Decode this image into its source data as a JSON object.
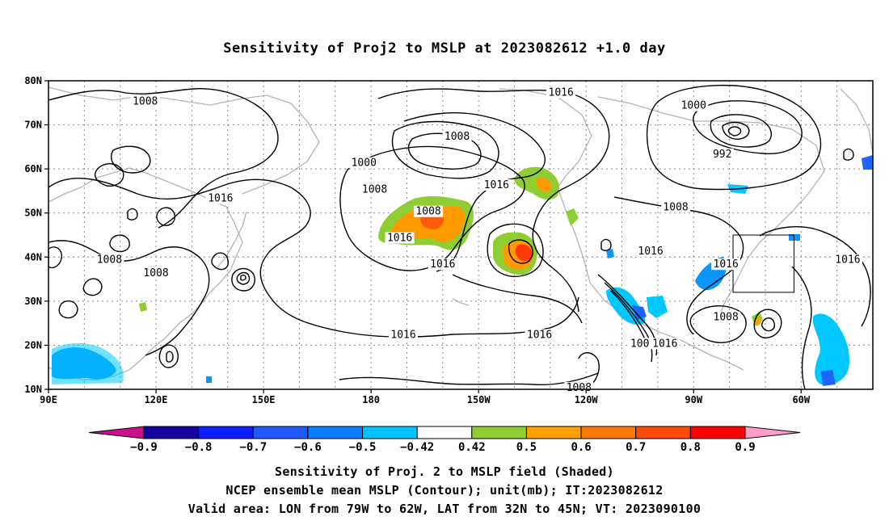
{
  "title": "Sensitivity of Proj2 to MSLP at 2023082612 +1.0 day",
  "map": {
    "lon_ticks": [
      "90E",
      "120E",
      "150E",
      "180",
      "150W",
      "120W",
      "90W",
      "60W"
    ],
    "lat_ticks": [
      "80N",
      "70N",
      "60N",
      "50N",
      "40N",
      "30N",
      "20N",
      "10N"
    ],
    "lon_range": [
      90,
      320
    ],
    "lat_range": [
      10,
      80
    ],
    "contour_field": "MSLP",
    "contour_unit": "mb",
    "contour_labels": [
      {
        "text": "1008",
        "lon": 117,
        "lat": 75
      },
      {
        "text": "1016",
        "lon": 138,
        "lat": 53
      },
      {
        "text": "1008",
        "lon": 107,
        "lat": 39
      },
      {
        "text": "1008",
        "lon": 120,
        "lat": 36
      },
      {
        "text": "1016",
        "lon": 200,
        "lat": 38
      },
      {
        "text": "1016",
        "lon": 188,
        "lat": 44
      },
      {
        "text": "1008",
        "lon": 196,
        "lat": 50
      },
      {
        "text": "1008",
        "lon": 181,
        "lat": 55
      },
      {
        "text": "1000",
        "lon": 178,
        "lat": 61
      },
      {
        "text": "1008",
        "lon": 204,
        "lat": 67
      },
      {
        "text": "1016",
        "lon": 233,
        "lat": 77
      },
      {
        "text": "1016",
        "lon": 215,
        "lat": 56
      },
      {
        "text": "1016",
        "lon": 189,
        "lat": 22
      },
      {
        "text": "1016",
        "lon": 227,
        "lat": 22
      },
      {
        "text": "1008",
        "lon": 238,
        "lat": 10
      },
      {
        "text": "1000",
        "lon": 270,
        "lat": 74
      },
      {
        "text": "992",
        "lon": 278,
        "lat": 63
      },
      {
        "text": "1008",
        "lon": 265,
        "lat": 51
      },
      {
        "text": "1016",
        "lon": 258,
        "lat": 41
      },
      {
        "text": "1016",
        "lon": 279,
        "lat": 38
      },
      {
        "text": "1016",
        "lon": 313,
        "lat": 39
      },
      {
        "text": "1008",
        "lon": 279,
        "lat": 26
      },
      {
        "text": "100",
        "lon": 255,
        "lat": 20
      },
      {
        "text": "1016",
        "lon": 262,
        "lat": 20
      }
    ],
    "valid_box": {
      "lon_min": 281,
      "lon_max": 298,
      "lat_min": 32,
      "lat_max": 45
    },
    "colors": {
      "green": "#8fce33",
      "orange": "#ff9a00",
      "dorange": "#ff6a00",
      "red": "#ff2a0a",
      "lblue": "#00c8ff",
      "mblue": "#0a96ff",
      "blue": "#1e64ff",
      "land": "#b4b4b4"
    }
  },
  "colorbar": {
    "labels": [
      "-0.9",
      "-0.8",
      "-0.7",
      "-0.6",
      "-0.5",
      "-0.42",
      "0.42",
      "0.5",
      "0.6",
      "0.7",
      "0.8",
      "0.9"
    ],
    "colors": [
      "#1400a0",
      "#0a1eff",
      "#1e5aff",
      "#0a7eff",
      "#00c4ff",
      "#ffffff",
      "#8fce33",
      "#ffa000",
      "#ff7800",
      "#ff4a0a",
      "#ff0000"
    ],
    "low_end_color": "#c8108c",
    "high_end_color": "#ff9ec8"
  },
  "footer": {
    "line1": "Sensitivity of Proj. 2 to MSLP field (Shaded)",
    "line2": "NCEP ensemble mean MSLP (Contour); unit(mb); IT:2023082612",
    "line3": "Valid area: LON from 79W to 62W, LAT from 32N to 45N; VT: 2023090100"
  }
}
